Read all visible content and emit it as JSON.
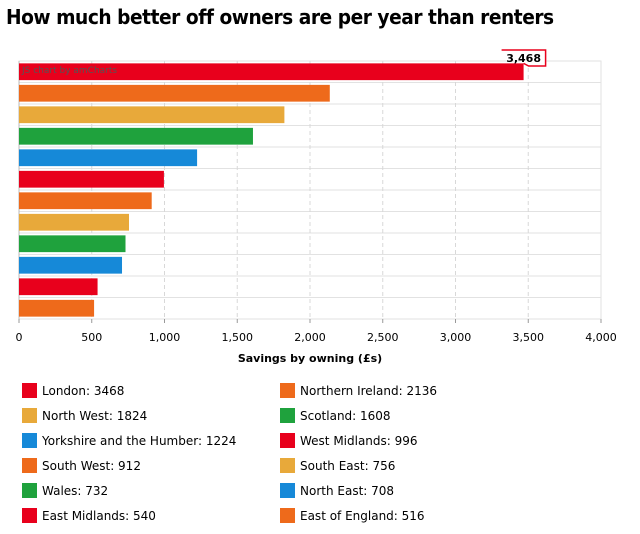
{
  "title": "How much better off owners are per year than renters",
  "credit": "JS chart by amCharts",
  "chart_data": {
    "type": "bar",
    "orientation": "horizontal",
    "categories": [
      "London",
      "Northern Ireland",
      "North West",
      "Scotland",
      "Yorkshire and the Humber",
      "West Midlands",
      "South West",
      "South East",
      "Wales",
      "North East",
      "East Midlands",
      "East of England"
    ],
    "values": [
      3468,
      2136,
      1824,
      1608,
      1224,
      996,
      912,
      756,
      732,
      708,
      540,
      516
    ],
    "colors": [
      "#e8001c",
      "#ee6a1b",
      "#e8a93a",
      "#1fa23d",
      "#1689d8",
      "#e8001c",
      "#ee6a1b",
      "#e8a93a",
      "#1fa23d",
      "#1689d8",
      "#e8001c",
      "#ee6a1b"
    ],
    "xlabel": "Savings by owning (£s)",
    "ylabel": "",
    "xlim": [
      0,
      4000
    ],
    "xticks": [
      0,
      500,
      1000,
      1500,
      2000,
      2500,
      3000,
      3500,
      4000
    ],
    "xtick_labels": [
      "0",
      "500",
      "1,000",
      "1,500",
      "2,000",
      "2,500",
      "3,000",
      "3,500",
      "4,000"
    ],
    "grid": true,
    "balloon": "3,468",
    "legend_position": "bottom",
    "legend": [
      "London: 3468",
      "Northern Ireland: 2136",
      "North West: 1824",
      "Scotland: 1608",
      "Yorkshire and the Humber: 1224",
      "West Midlands: 996",
      "South West: 912",
      "South East: 756",
      "Wales: 732",
      "North East: 708",
      "East Midlands: 540",
      "East of England: 516"
    ]
  }
}
